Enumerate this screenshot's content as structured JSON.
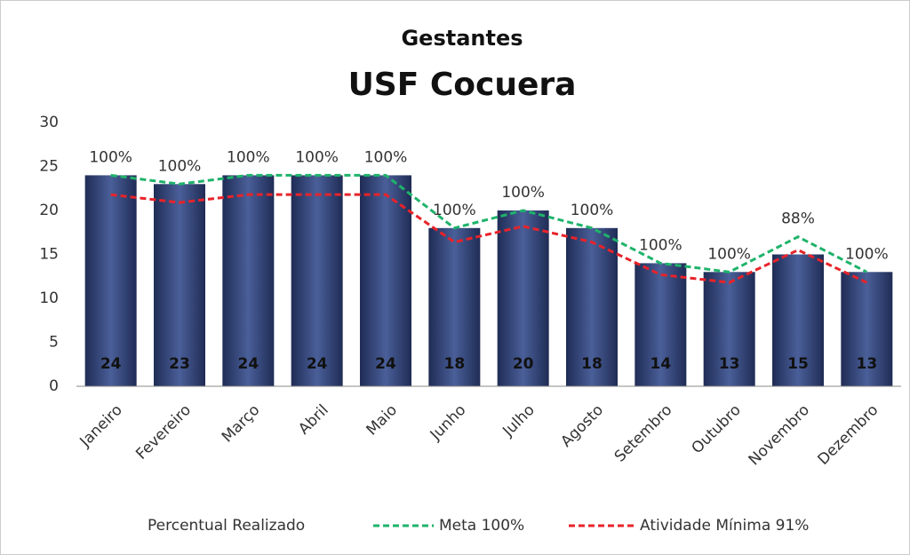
{
  "chart_data": {
    "type": "bar",
    "title": "Gestantes",
    "subtitle": "USF Cocuera",
    "categories": [
      "Janeiro",
      "Fevereiro",
      "Março",
      "Abril",
      "Maio",
      "Junho",
      "Julho",
      "Agosto",
      "Setembro",
      "Outubro",
      "Novembro",
      "Dezembro"
    ],
    "series": [
      {
        "name": "Percentual Realizado",
        "color": "#4a5f99",
        "values": [
          24,
          23,
          24,
          24,
          24,
          18,
          20,
          18,
          14,
          13,
          15,
          13
        ]
      },
      {
        "name": "Meta 100%",
        "color": "#1fb36b",
        "values": [
          24,
          23,
          24,
          24,
          24,
          18,
          20,
          18,
          14,
          13,
          17,
          13
        ]
      },
      {
        "name": "Atividade Mínima 91%",
        "color": "#e8232a",
        "values": [
          21.8,
          20.9,
          21.8,
          21.8,
          21.8,
          16.4,
          18.2,
          16.4,
          12.7,
          11.8,
          15.5,
          11.8
        ]
      }
    ],
    "percent_labels": [
      "100%",
      "100%",
      "100%",
      "100%",
      "100%",
      "100%",
      "100%",
      "100%",
      "100%",
      "100%",
      "88%",
      "100%"
    ],
    "ylim": [
      0,
      30
    ],
    "yticks": [
      0,
      5,
      10,
      15,
      20,
      25,
      30
    ],
    "grid": false,
    "legend": "bottom"
  }
}
